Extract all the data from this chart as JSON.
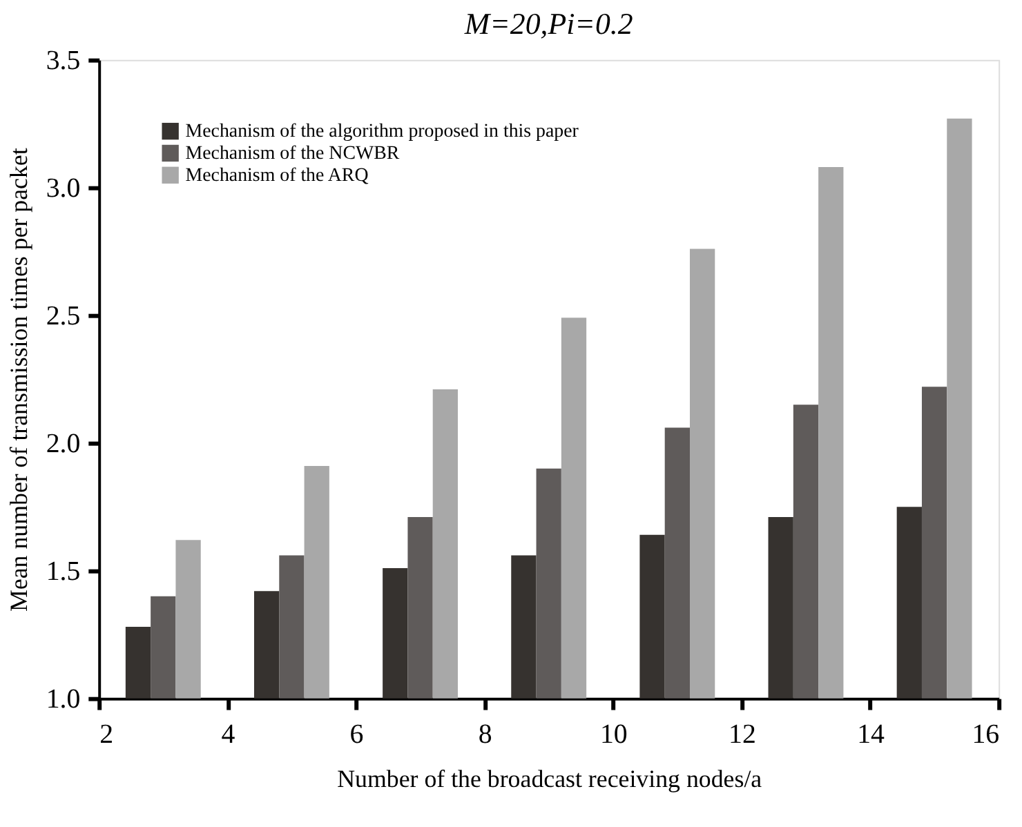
{
  "chart_data": {
    "type": "bar",
    "title": "M=20,Pi=0.2",
    "xlabel": "Number of the broadcast receiving nodes/a",
    "ylabel": "Mean number of transmission times per packet",
    "x": [
      3,
      5,
      7,
      9,
      11,
      13,
      15
    ],
    "series": [
      {
        "name": "Mechanism of the algorithm proposed in this paper",
        "color": "#36322f",
        "values": [
          1.28,
          1.42,
          1.51,
          1.56,
          1.64,
          1.71,
          1.75
        ]
      },
      {
        "name": "Mechanism of the NCWBR",
        "color": "#5f5b5a",
        "values": [
          1.4,
          1.56,
          1.71,
          1.9,
          2.06,
          2.15,
          2.22
        ]
      },
      {
        "name": "Mechanism of the ARQ",
        "color": "#a8a8a8",
        "values": [
          1.62,
          1.91,
          2.21,
          2.49,
          2.76,
          3.08,
          3.27
        ]
      }
    ],
    "xlim": [
      2,
      16
    ],
    "xticks": [
      2,
      4,
      6,
      8,
      10,
      12,
      14,
      16
    ],
    "ylim": [
      1.0,
      3.5
    ],
    "yticks": [
      {
        "value": 1.0,
        "label": "1.0"
      },
      1.5,
      {
        "value": 2.0,
        "label": "2.0"
      },
      2.5,
      {
        "value": 3.0,
        "label": "3.0"
      },
      3.5
    ],
    "grid": false,
    "legend": "top left"
  }
}
